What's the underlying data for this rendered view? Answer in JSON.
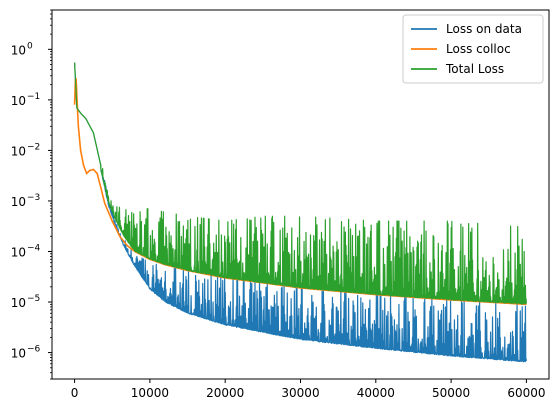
{
  "chart_data": {
    "type": "line",
    "title": "",
    "xlabel": "",
    "ylabel": "",
    "xlim": [
      -3000,
      63000
    ],
    "ylim": [
      3e-07,
      6
    ],
    "yscale": "log",
    "grid": false,
    "legend": "top-right",
    "x_ticks": [
      {
        "value": 0,
        "label": "0"
      },
      {
        "value": 10000,
        "label": "10000"
      },
      {
        "value": 20000,
        "label": "20000"
      },
      {
        "value": 30000,
        "label": "30000"
      },
      {
        "value": 40000,
        "label": "40000"
      },
      {
        "value": 50000,
        "label": "50000"
      },
      {
        "value": 60000,
        "label": "60000"
      }
    ],
    "y_ticks": [
      {
        "value": 1e-06,
        "base": "10",
        "exp": "−6"
      },
      {
        "value": 1e-05,
        "base": "10",
        "exp": "−5"
      },
      {
        "value": 0.0001,
        "base": "10",
        "exp": "−4"
      },
      {
        "value": 0.001,
        "base": "10",
        "exp": "−3"
      },
      {
        "value": 0.01,
        "base": "10",
        "exp": "−2"
      },
      {
        "value": 0.1,
        "base": "10",
        "exp": "−1"
      },
      {
        "value": 1,
        "base": "10",
        "exp": "0"
      }
    ],
    "series": [
      {
        "name": "Loss on data",
        "color": "#1f77b4",
        "x": [
          0,
          300,
          800,
          1500,
          2500,
          3500,
          4500,
          5500,
          6500,
          8000,
          10000,
          12000,
          15000,
          20000,
          25000,
          30000,
          40000,
          50000,
          60000
        ],
        "low": [
          0.1,
          0.06,
          0.05,
          0.04,
          0.02,
          0.004,
          0.0008,
          0.0003,
          0.00013,
          5e-05,
          1.8e-05,
          1e-05,
          6e-06,
          3.5e-06,
          2.5e-06,
          1.8e-06,
          1.2e-06,
          8.5e-07,
          6.5e-07
        ],
        "high": [
          3.0,
          0.08,
          0.06,
          0.045,
          0.025,
          0.006,
          0.0012,
          0.0004,
          0.00018,
          9e-05,
          6e-05,
          5e-05,
          4.2e-05,
          3.2e-05,
          2.5e-05,
          2e-05,
          1.4e-05,
          1.1e-05,
          9e-06
        ]
      },
      {
        "name": "Loss colloc",
        "color": "#ff7f0e",
        "x": [
          0,
          150,
          300,
          500,
          800,
          1200,
          1600,
          2000,
          2500,
          3000,
          3500,
          4000,
          5000,
          6000,
          7000,
          8000,
          10000,
          12000,
          15000,
          20000,
          25000,
          30000,
          40000,
          50000,
          60000
        ],
        "values": [
          0.08,
          0.4,
          0.12,
          0.03,
          0.01,
          0.005,
          0.0035,
          0.004,
          0.0042,
          0.0035,
          0.0018,
          0.0009,
          0.0004,
          0.0002,
          0.00013,
          0.0001,
          7e-05,
          5.5e-05,
          4.2e-05,
          3e-05,
          2.4e-05,
          1.9e-05,
          1.4e-05,
          1.1e-05,
          9e-06
        ]
      },
      {
        "name": "Total Loss",
        "color": "#2ca02c",
        "x": [
          0,
          300,
          800,
          1500,
          2500,
          3500,
          4500,
          5500,
          6500,
          8000,
          10000,
          12000,
          15000,
          20000,
          25000,
          30000,
          40000,
          50000,
          60000
        ],
        "low": [
          0.1,
          0.06,
          0.05,
          0.04,
          0.02,
          0.004,
          0.0009,
          0.0004,
          0.0002,
          0.0001,
          7e-05,
          5.5e-05,
          4.2e-05,
          3e-05,
          2.4e-05,
          1.9e-05,
          1.4e-05,
          1.1e-05,
          9e-06
        ],
        "high": [
          3.0,
          0.08,
          0.06,
          0.045,
          0.025,
          0.006,
          0.0015,
          0.0008,
          0.0007,
          0.0007,
          0.0007,
          0.0006,
          0.0005,
          0.0004,
          0.0005,
          0.0005,
          0.0004,
          0.0004,
          0.0003
        ]
      }
    ]
  }
}
